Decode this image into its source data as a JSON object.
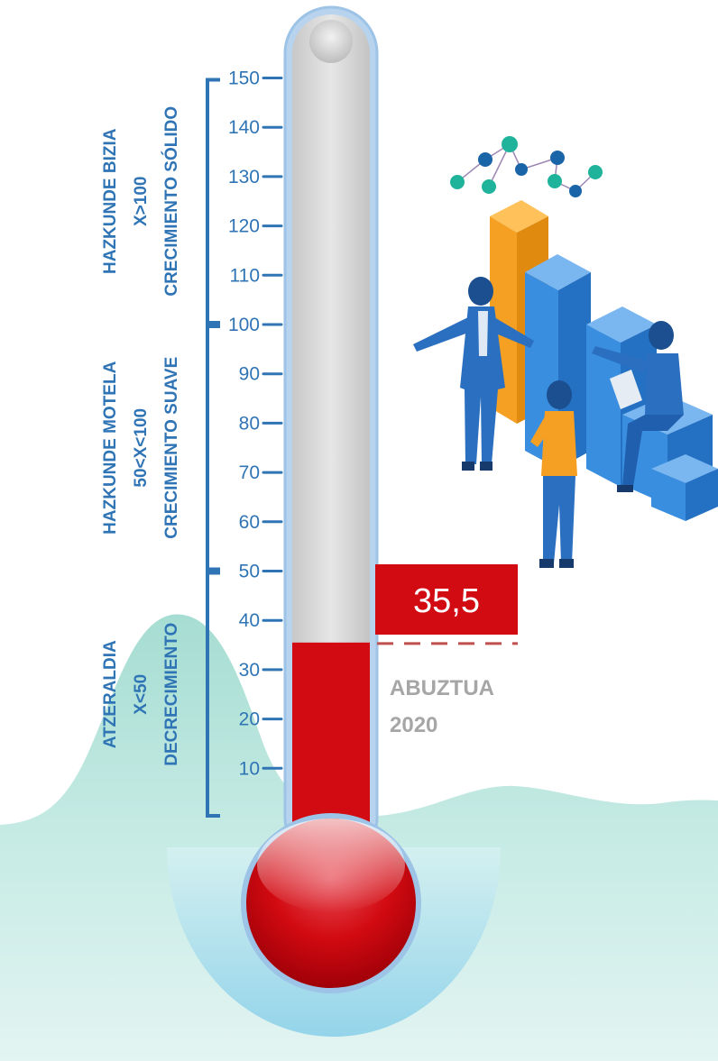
{
  "chart_data": {
    "type": "thermometer",
    "value": 35.5,
    "value_label": "35,5",
    "period": [
      "ABUZTUA",
      "2020"
    ],
    "scale_min": 0,
    "scale_max": 150,
    "ticks": [
      {
        "value": 150,
        "label": "150"
      },
      {
        "value": 140,
        "label": "140"
      },
      {
        "value": 130,
        "label": "130"
      },
      {
        "value": 120,
        "label": "120"
      },
      {
        "value": 110,
        "label": "110"
      },
      {
        "value": 100,
        "label": "100"
      },
      {
        "value": 90,
        "label": "90"
      },
      {
        "value": 80,
        "label": "80"
      },
      {
        "value": 70,
        "label": "70"
      },
      {
        "value": 60,
        "label": "60"
      },
      {
        "value": 50,
        "label": "50"
      },
      {
        "value": 40,
        "label": "40"
      },
      {
        "value": 30,
        "label": "30"
      },
      {
        "value": 20,
        "label": "20"
      },
      {
        "value": 10,
        "label": "10"
      }
    ],
    "bands": [
      {
        "from": 100,
        "to": 150,
        "lines": [
          "HAZKUNDE BIZIA",
          "X>100",
          "CRECIMIENTO SÓLIDO"
        ]
      },
      {
        "from": 50,
        "to": 100,
        "lines": [
          "HAZKUNDE MOTELA",
          "50<X<100",
          "CRECIMIENTO SUAVE"
        ]
      },
      {
        "from": 0,
        "to": 50,
        "lines": [
          "ATZERALDIA",
          "X<50",
          "DECRECIMIENTO"
        ]
      }
    ]
  },
  "colors": {
    "scale_blue": "#2f74b5",
    "mercury_red": "#d20a11",
    "tube_gray": "#d9d9d9",
    "tube_border": "#9dc3e6",
    "dashed_line": "#c0504d",
    "date_gray": "#a6a6a6",
    "teal_wave": "#a8ded2",
    "orange_bar": "#f5a023",
    "blue_bar": "#2f80d0"
  },
  "illustration": {
    "icon": "business-team-bar-chart-illustration"
  }
}
